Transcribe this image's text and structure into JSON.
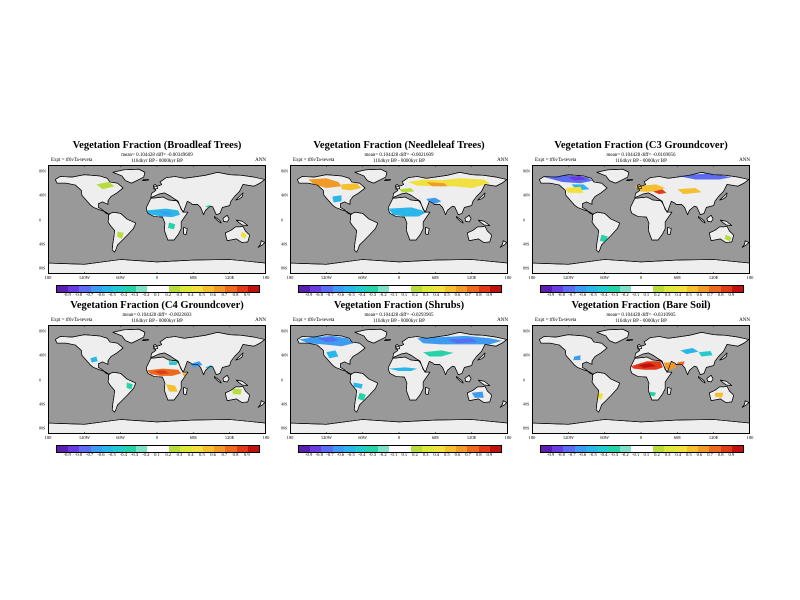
{
  "panels": [
    {
      "title": "Vegetation Fraction (Broadleaf Trees)",
      "stats": "mean= 0.104428 diff= -0.00349609",
      "expt": "Expt = tf6vTa-teveta",
      "period": "1164kyr BP - 0000kyr BP",
      "season": "ANN",
      "lat_labels": [
        "80N",
        "40N",
        "0",
        "40S",
        "80S"
      ],
      "lon_labels": [
        "180",
        "120W",
        "60W",
        "0",
        "60E",
        "120E",
        "180"
      ],
      "colorbar_ticks": [
        "-0.9",
        "-0.8",
        "-0.7",
        "-0.6",
        "-0.5",
        "-0.4",
        "-0.3",
        "-0.2",
        "0.1",
        "0.2",
        "0.3",
        "0.4",
        "0.5",
        "0.6",
        "0.7",
        "0.8",
        "0.9"
      ],
      "anomaly": "broadleaf"
    },
    {
      "title": "Vegetation Fraction (Needleleaf Trees)",
      "stats": "mean= 0.104428 diff= -0.0021609",
      "expt": "Expt = tf6vTa-teveta",
      "period": "1164kyr BP - 0000kyr BP",
      "season": "ANN",
      "lat_labels": [
        "80N",
        "40N",
        "0",
        "40S",
        "80S"
      ],
      "lon_labels": [
        "180",
        "120W",
        "60W",
        "0",
        "60E",
        "120E",
        "180"
      ],
      "colorbar_ticks": [
        "-0.9",
        "-0.8",
        "-0.7",
        "-0.6",
        "-0.5",
        "-0.4",
        "-0.3",
        "-0.2",
        "-0.1",
        "0.1",
        "0.2",
        "0.3",
        "0.4",
        "0.5",
        "0.6",
        "0.7",
        "0.8",
        "0.9"
      ],
      "anomaly": "needleleaf"
    },
    {
      "title": "Vegetation Fraction (C3 Groundcover)",
      "stats": "mean= 0.104428 diff= -0.0169056",
      "expt": "Expt = tf6vTa-teveta",
      "period": "1164kyr BP - 0000kyr BP",
      "season": "ANN",
      "lat_labels": [
        "80N",
        "40N",
        "0",
        "40S",
        "80S"
      ],
      "lon_labels": [
        "180",
        "120W",
        "60W",
        "0",
        "60E",
        "120E",
        "180"
      ],
      "colorbar_ticks": [
        "-0.9",
        "-0.8",
        "-0.7",
        "-0.6",
        "-0.5",
        "-0.4",
        "-0.3",
        "-0.2",
        "-0.1",
        "0.1",
        "0.2",
        "0.3",
        "0.4",
        "0.5",
        "0.6",
        "0.7",
        "0.8",
        "0.9"
      ],
      "anomaly": "c3"
    },
    {
      "title": "Vegetation Fraction (C4 Groundcover)",
      "stats": "mean= 0.104428 diff= -0.0022603",
      "expt": "Expt = tf6vTa-teveta",
      "period": "1164kyr BP - 0000kyr BP",
      "season": "ANN",
      "lat_labels": [
        "80N",
        "40N",
        "0",
        "40S",
        "80S"
      ],
      "lon_labels": [
        "180",
        "120W",
        "60W",
        "0",
        "60E",
        "120E",
        "180"
      ],
      "colorbar_ticks": [
        "-0.9",
        "-0.8",
        "-0.7",
        "-0.6",
        "-0.5",
        "-0.4",
        "-0.3",
        "-0.2",
        "0.1",
        "0.2",
        "0.3",
        "0.4",
        "0.5",
        "0.6",
        "0.7",
        "0.8",
        "0.9"
      ],
      "anomaly": "c4"
    },
    {
      "title": "Vegetation Fraction (Shrubs)",
      "stats": "mean= 0.104428 diff= -0.0293905",
      "expt": "Expt = tf6vTa-teveta",
      "period": "1164kyr BP - 0000kyr BP",
      "season": "ANN",
      "lat_labels": [
        "80N",
        "40N",
        "0",
        "40S",
        "80S"
      ],
      "lon_labels": [
        "180",
        "120W",
        "60W",
        "0",
        "60E",
        "120E",
        "180"
      ],
      "colorbar_ticks": [
        "-0.9",
        "-0.8",
        "-0.7",
        "-0.6",
        "-0.5",
        "-0.4",
        "-0.3",
        "-0.2",
        "-0.1",
        "0.1",
        "0.2",
        "0.3",
        "0.4",
        "0.5",
        "0.6",
        "0.7",
        "0.8",
        "0.9"
      ],
      "anomaly": "shrubs"
    },
    {
      "title": "Vegetation Fraction (Bare Soil)",
      "stats": "mean= 0.104428 diff= -0.0310905",
      "expt": "Expt = tf6vTa-teveta",
      "period": "1164kyr BP - 0000kyr BP",
      "season": "ANN",
      "lat_labels": [
        "80N",
        "40N",
        "0",
        "40S",
        "80S"
      ],
      "lon_labels": [
        "180",
        "120W",
        "60W",
        "0",
        "60E",
        "120E",
        "180"
      ],
      "colorbar_ticks": [
        "-0.9",
        "-0.8",
        "-0.7",
        "-0.6",
        "-0.5",
        "-0.4",
        "-0.3",
        "-0.2",
        "-0.1",
        "0.1",
        "0.2",
        "0.3",
        "0.4",
        "0.5",
        "0.6",
        "0.7",
        "0.8",
        "0.9"
      ],
      "anomaly": "baresoil"
    }
  ],
  "colorbar_colors": [
    "#5a1fb0",
    "#6a3ce0",
    "#5b6cf0",
    "#3e9cf0",
    "#2ab6e8",
    "#23cbd0",
    "#27d2a8",
    "#7fe0c8",
    "#ffffff",
    "#ffffff",
    "#b8dc3c",
    "#dce83a",
    "#f0e040",
    "#f4c030",
    "#f09a28",
    "#ec6a20",
    "#e03a18",
    "#c01010"
  ],
  "colors": {
    "ocean": "#999999",
    "land": "#eeeeee",
    "coast": "#000000"
  }
}
